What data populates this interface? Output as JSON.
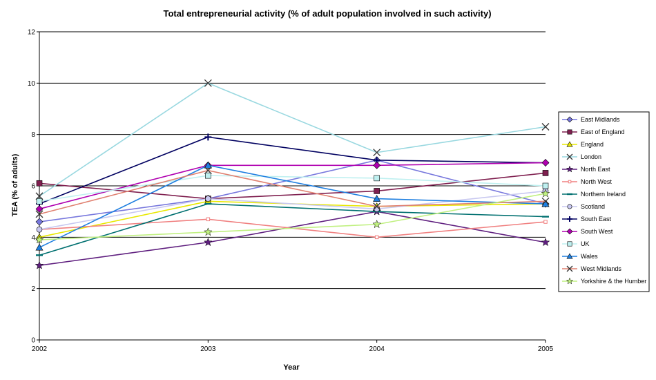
{
  "chart_data": {
    "type": "line",
    "title": "Total entrepreneurial activity (% of adult population involved in such activity)",
    "xlabel": "Year",
    "ylabel": "TEA (% of adults)",
    "categories": [
      "2002",
      "2003",
      "2004",
      "2005"
    ],
    "ylim": [
      0,
      12
    ],
    "yticks": [
      0,
      2,
      4,
      6,
      8,
      10,
      12
    ],
    "grid": "horizontal",
    "legend_position": "right",
    "series": [
      {
        "name": "East Midlands",
        "color": "#7777dd",
        "marker": "diamond",
        "values": [
          4.6,
          5.5,
          7.0,
          5.3
        ]
      },
      {
        "name": "East of England",
        "color": "#7f1f4f",
        "marker": "square",
        "values": [
          6.1,
          5.5,
          5.8,
          6.5
        ]
      },
      {
        "name": "England",
        "color": "#e8e800",
        "marker": "triangle",
        "values": [
          4.0,
          5.4,
          5.2,
          5.3
        ]
      },
      {
        "name": "London",
        "color": "#99d8e0",
        "marker": "x",
        "values": [
          5.6,
          10.0,
          7.3,
          8.3
        ]
      },
      {
        "name": "North East",
        "color": "#5f1f7f",
        "marker": "star",
        "values": [
          2.9,
          3.8,
          5.0,
          3.8
        ]
      },
      {
        "name": "North West",
        "color": "#f08080",
        "marker": "smallsquare",
        "values": [
          4.3,
          4.7,
          4.0,
          4.6
        ]
      },
      {
        "name": "Northern Ireland",
        "color": "#007070",
        "marker": "dash",
        "values": [
          3.3,
          5.3,
          5.0,
          4.8
        ]
      },
      {
        "name": "Scotland",
        "color": "#c8c8f0",
        "marker": "circle",
        "values": [
          4.3,
          5.5,
          5.1,
          5.8
        ]
      },
      {
        "name": "South East",
        "color": "#000060",
        "marker": "plus",
        "values": [
          5.3,
          7.9,
          7.0,
          6.9
        ]
      },
      {
        "name": "South West",
        "color": "#b000b0",
        "marker": "diamond",
        "values": [
          5.1,
          6.8,
          6.8,
          6.9
        ]
      },
      {
        "name": "UK",
        "color": "#bff0f0",
        "marker": "square",
        "values": [
          5.4,
          6.4,
          6.3,
          6.0
        ]
      },
      {
        "name": "Wales",
        "color": "#1f7fe0",
        "marker": "triangle",
        "values": [
          3.6,
          6.8,
          5.5,
          5.3
        ]
      },
      {
        "name": "West Midlands",
        "color": "#e08070",
        "marker": "x",
        "values": [
          4.9,
          6.6,
          5.2,
          5.4
        ]
      },
      {
        "name": "Yorkshire & the Humber",
        "color": "#c0f080",
        "marker": "star",
        "values": [
          3.9,
          4.2,
          4.5,
          5.7
        ]
      }
    ]
  }
}
